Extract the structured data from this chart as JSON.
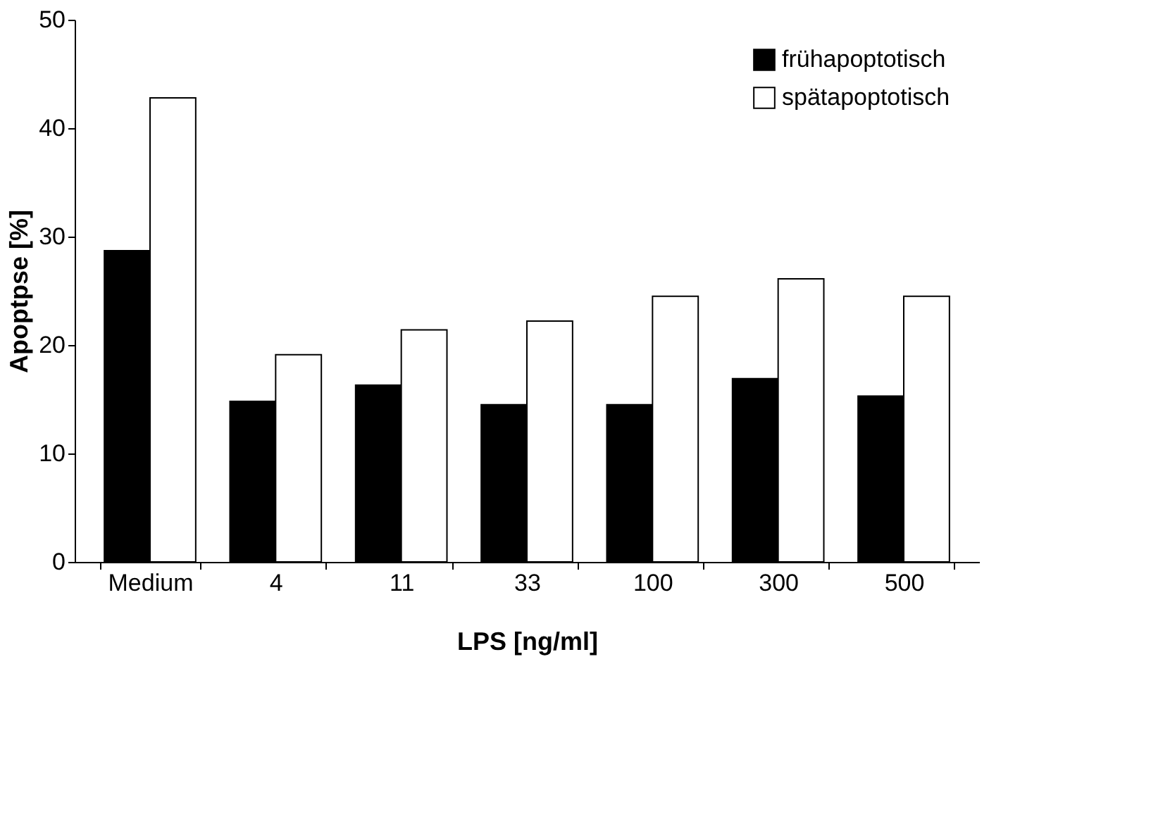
{
  "chart_data": {
    "type": "bar",
    "xlabel": "LPS [ng/ml]",
    "ylabel": "Apoptpse [%]",
    "categories": [
      "Medium",
      "4",
      "11",
      "33",
      "100",
      "300",
      "500"
    ],
    "series": [
      {
        "name": "frühapoptotisch",
        "color": "#000000",
        "values": [
          28.7,
          14.8,
          16.3,
          14.5,
          14.5,
          16.9,
          15.3
        ]
      },
      {
        "name": "spätapoptotisch",
        "color": "#ffffff",
        "values": [
          42.8,
          19.1,
          21.4,
          22.2,
          24.5,
          26.1,
          24.5
        ]
      }
    ],
    "ylim": [
      0,
      50
    ],
    "yticks": [
      0,
      10,
      20,
      30,
      40,
      50
    ],
    "grid": false,
    "legend": "top right"
  }
}
